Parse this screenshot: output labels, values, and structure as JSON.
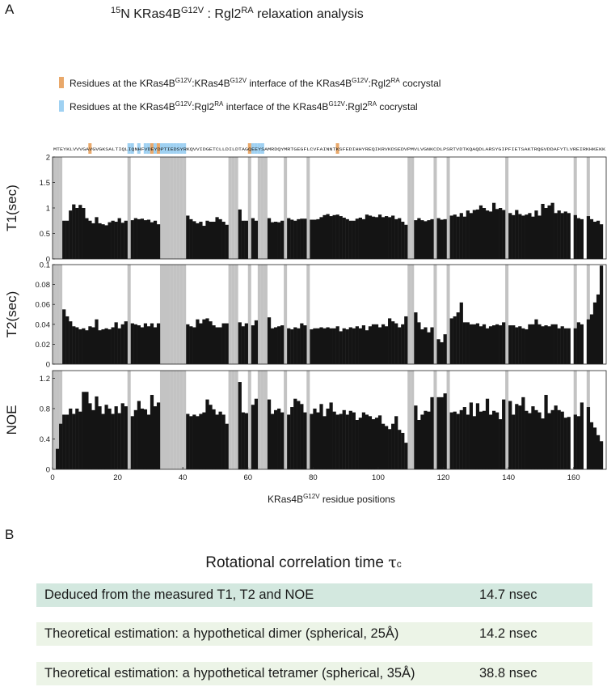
{
  "figure": {
    "panel_a_label": "A",
    "panel_b_label": "B",
    "title_prefix": "15",
    "title_main": "N KRas4B",
    "title_sup": "G12V",
    "title_mid": " : Rgl2",
    "title_sup2": "RA",
    "title_suffix": " relaxation analysis"
  },
  "legend": [
    {
      "color": "#e9a86a",
      "prefix": "Residues at the KRas4B",
      "sup1": "G12V",
      "mid1": ":KRas4B",
      "sup2": "G12V",
      "mid2": " interface of the KRas4B",
      "sup3": "G12V",
      "mid3": ":Rgl2",
      "sup4": "RA",
      "suffix": " cocrystal"
    },
    {
      "color": "#9fd1f2",
      "prefix": "Residues at the KRas4B",
      "sup1": "G12V",
      "mid1": ":Rgl2",
      "sup2": "RA",
      "mid2": " interface of the KRas4B",
      "sup3": "G12V",
      "mid3": ":Rgl2",
      "sup4": "RA",
      "suffix": " cocrystal"
    }
  ],
  "sequence": "MTEYKLVVVGAVGVGKSALTIQLIQNHFVDEYDPTIEDSYRKQVVIDGETCLLDILDTAGQEEYSAMRDQYMRTGEGFLCVFAINNTKSFEDIHHYREQIKRVKDSEDVPMVLVGNKCDLPSRTVDTKQAQDLARSYGIPFIETSAKTRQGVDDAFYTLVREIRKHKEKK",
  "colors": {
    "bar": "#141414",
    "gap": "#c3c3c3",
    "orange": "#e9a86a",
    "blue": "#9fd1f2",
    "row_dark": "#d3e8df",
    "row_light": "#ecf4e7"
  },
  "chart_data": {
    "type": "bar",
    "xlabel_prefix": "KRas4B",
    "xlabel_sup": "G12V",
    "xlabel_suffix": " residue positions",
    "xlim": [
      0,
      170
    ],
    "x_ticks": [
      0,
      20,
      40,
      60,
      80,
      100,
      120,
      140,
      160
    ],
    "missing_residues": [
      1,
      2,
      3,
      24,
      34,
      35,
      36,
      37,
      38,
      39,
      40,
      41,
      55,
      56,
      57,
      61,
      64,
      65,
      66,
      72,
      79,
      110,
      111,
      118,
      122,
      140,
      161,
      165
    ],
    "interface_residues_dimer": [
      12,
      31,
      33,
      61,
      88
    ],
    "interface_residues_rgl2": [
      24,
      25,
      27,
      29,
      30,
      32,
      34,
      35,
      36,
      37,
      38,
      39,
      40,
      41,
      62,
      63,
      64,
      65
    ],
    "panels": [
      {
        "ylabel": "T1(sec)",
        "ylim": [
          0,
          2
        ],
        "y_ticks": [
          0,
          0.5,
          1,
          1.5,
          2
        ],
        "values": [
          0,
          0,
          0,
          0.75,
          0.75,
          0.95,
          1.07,
          1.0,
          1.06,
          1.0,
          0.8,
          0.75,
          0.7,
          0.82,
          0.7,
          0.68,
          0.66,
          0.72,
          0.75,
          0.73,
          0.8,
          0.71,
          0.75,
          0,
          0.76,
          0.8,
          0.78,
          0.79,
          0.76,
          0.77,
          0.72,
          0.75,
          0.68,
          0,
          0,
          0,
          0,
          0,
          0,
          0,
          0,
          0.85,
          0.78,
          0.74,
          0.7,
          0.73,
          0.65,
          0.75,
          0.73,
          0.73,
          0.82,
          0.78,
          0.73,
          0.67,
          0,
          0,
          0,
          0.97,
          0.75,
          0.75,
          0,
          0.8,
          0.75,
          0,
          0,
          0,
          0.8,
          0.72,
          0.73,
          0.72,
          0.75,
          0,
          0.8,
          0.77,
          0.75,
          0.78,
          0.79,
          0.79,
          0,
          0.77,
          0.77,
          0.78,
          0.82,
          0.86,
          0.88,
          0.84,
          0.86,
          0.87,
          0.84,
          0.81,
          0.78,
          0.75,
          0.75,
          0.79,
          0.81,
          0.78,
          0.87,
          0.85,
          0.83,
          0.82,
          0.87,
          0.82,
          0.84,
          0.82,
          0.85,
          0.78,
          0.8,
          0.73,
          0.67,
          0,
          0,
          0.76,
          0.8,
          0.76,
          0.74,
          0.76,
          0.78,
          0,
          0.8,
          0.77,
          0.78,
          0,
          0.85,
          0.87,
          0.83,
          0.9,
          0.83,
          0.95,
          0.9,
          0.96,
          0.97,
          1.05,
          1.0,
          0.95,
          0.93,
          1.1,
          0.98,
          1.0,
          0.96,
          0,
          0.9,
          0.86,
          0.96,
          0.88,
          0.85,
          0.87,
          0.9,
          0.83,
          0.95,
          0.85,
          1.08,
          1.0,
          1.05,
          1.1,
          0.9,
          0.95,
          0.9,
          0.93,
          0.9,
          0,
          0.86,
          0.8,
          0.78,
          0,
          0.84,
          0.78,
          0.73,
          0.75,
          0.68
        ]
      },
      {
        "ylabel": "T2(sec)",
        "ylim": [
          0,
          0.1
        ],
        "y_ticks": [
          0,
          0.02,
          0.04,
          0.06,
          0.08,
          0.1
        ],
        "values": [
          0,
          0,
          0,
          0.055,
          0.048,
          0.043,
          0.038,
          0.037,
          0.035,
          0.036,
          0.034,
          0.038,
          0.037,
          0.045,
          0.034,
          0.035,
          0.036,
          0.035,
          0.037,
          0.042,
          0.036,
          0.04,
          0.043,
          0,
          0.041,
          0.04,
          0.039,
          0.037,
          0.041,
          0.038,
          0.041,
          0.037,
          0.041,
          0,
          0,
          0,
          0,
          0,
          0,
          0,
          0,
          0.04,
          0.038,
          0.037,
          0.045,
          0.041,
          0.045,
          0.046,
          0.043,
          0.039,
          0.037,
          0.037,
          0.041,
          0.041,
          0,
          0,
          0,
          0.042,
          0.038,
          0.041,
          0,
          0.039,
          0.044,
          0,
          0,
          0,
          0.047,
          0.036,
          0.037,
          0.038,
          0.039,
          0,
          0.036,
          0.035,
          0.037,
          0.036,
          0.041,
          0.039,
          0,
          0.035,
          0.036,
          0.036,
          0.037,
          0.036,
          0.037,
          0.036,
          0.036,
          0.038,
          0.033,
          0.036,
          0.035,
          0.037,
          0.036,
          0.038,
          0.036,
          0.039,
          0.034,
          0.038,
          0.04,
          0.04,
          0.037,
          0.04,
          0.038,
          0.046,
          0.043,
          0.041,
          0.037,
          0.04,
          0.048,
          0,
          0,
          0.052,
          0.042,
          0.035,
          0.037,
          0.032,
          0.037,
          0,
          0.025,
          0.022,
          0.03,
          0,
          0.046,
          0.048,
          0.052,
          0.062,
          0.042,
          0.042,
          0.04,
          0.04,
          0.041,
          0.038,
          0.04,
          0.036,
          0.038,
          0.039,
          0.04,
          0.039,
          0.042,
          0,
          0.039,
          0.039,
          0.037,
          0.038,
          0.036,
          0.035,
          0.04,
          0.04,
          0.045,
          0.04,
          0.038,
          0.039,
          0.038,
          0.04,
          0.04,
          0.036,
          0.038,
          0.036,
          0.036,
          0,
          0.036,
          0.042,
          0.04,
          0,
          0.045,
          0.05,
          0.062,
          0.07,
          0.099
        ]
      },
      {
        "ylabel": "NOE",
        "ylim": [
          0,
          1.3
        ],
        "y_ticks": [
          0,
          0.4,
          0.8,
          1.2
        ],
        "values": [
          0,
          0.27,
          0.6,
          0.72,
          0.72,
          0.8,
          0.73,
          0.8,
          0.76,
          1.02,
          1.02,
          0.87,
          0.78,
          0.96,
          0.83,
          0.73,
          0.85,
          0.8,
          0.73,
          0.83,
          0.74,
          0.87,
          0.83,
          0,
          0.7,
          0.78,
          0.9,
          0.8,
          0.79,
          0.72,
          0.98,
          0.83,
          0.88,
          0,
          0,
          0,
          0,
          0,
          0,
          0,
          0,
          0.73,
          0.7,
          0.72,
          0.7,
          0.73,
          0.75,
          0.92,
          0.85,
          0.79,
          0.72,
          0.76,
          0.72,
          0.6,
          0,
          0,
          0,
          1.15,
          0.75,
          0.74,
          0,
          0.85,
          0.93,
          0,
          0,
          0,
          0.92,
          0.73,
          0.78,
          0.8,
          0.75,
          0,
          0.72,
          0.82,
          0.93,
          0.9,
          0.86,
          0.75,
          0,
          0.73,
          0.8,
          0.75,
          0.86,
          0.7,
          0.8,
          0.88,
          0.76,
          0.72,
          0.73,
          0.78,
          0.72,
          0.77,
          0.75,
          0.65,
          0.68,
          0.75,
          0.72,
          0.7,
          0.66,
          0.68,
          0.71,
          0.6,
          0.57,
          0.53,
          0.6,
          0.7,
          0.52,
          0.48,
          0.35,
          0,
          0,
          0.84,
          0.65,
          0.72,
          0.77,
          0.76,
          0.95,
          0,
          0.95,
          0.95,
          1.0,
          0,
          0.75,
          0.76,
          0.73,
          0.78,
          0.82,
          0.72,
          0.88,
          0.7,
          0.87,
          0.76,
          0.77,
          0.93,
          0.72,
          0.77,
          0.75,
          0.66,
          0.92,
          0,
          0.9,
          0.72,
          0.86,
          0.84,
          0.95,
          0.77,
          0.74,
          0.83,
          0.78,
          0.75,
          0.67,
          0.98,
          0.74,
          0.78,
          0.84,
          0.78,
          0.76,
          0.68,
          0.69,
          0,
          0.72,
          0.7,
          0.88,
          0,
          0.82,
          0.62,
          0.55,
          0.45,
          0.37
        ]
      }
    ]
  },
  "table": {
    "title": "Rotational correlation time",
    "title_symbol": "τ",
    "title_sub": "c",
    "rows": [
      {
        "label": "Deduced from the measured T1, T2 and NOE",
        "value": "14.7 nsec"
      },
      {
        "label": "Theoretical estimation: a hypothetical dimer (spherical, 25Å)",
        "value": "14.2 nsec"
      },
      {
        "label": "Theoretical estimation: a hypothetical tetramer (spherical, 35Å)",
        "value": "38.8 nsec"
      }
    ]
  }
}
